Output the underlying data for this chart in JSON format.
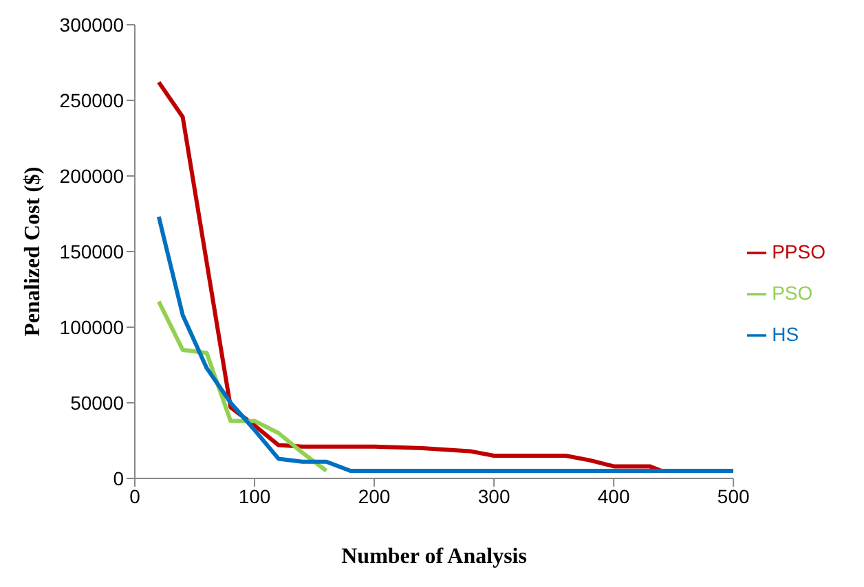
{
  "chart_data": {
    "type": "line",
    "xlabel": "Number of Analysis",
    "ylabel": "Penalized Cost ($)",
    "xlim": [
      0,
      500
    ],
    "xticks": [
      0,
      100,
      200,
      300,
      400,
      500
    ],
    "ylim": [
      0,
      300000
    ],
    "yticks": [
      0,
      50000,
      100000,
      150000,
      200000,
      250000,
      300000
    ],
    "grid": false,
    "legend": "right",
    "marker": "none",
    "line_style": "solid",
    "series": [
      {
        "name": "PPSO",
        "color": "#c00000",
        "x": [
          20,
          40,
          80,
          100,
          120,
          140,
          200,
          240,
          280,
          300,
          360,
          380,
          400,
          420,
          430,
          440
        ],
        "values": [
          262000,
          239000,
          47000,
          35000,
          22000,
          21000,
          21000,
          20000,
          18000,
          15000,
          15000,
          12000,
          8000,
          8000,
          8000,
          5000
        ]
      },
      {
        "name": "PSO",
        "color": "#92d050",
        "x": [
          20,
          40,
          60,
          80,
          100,
          120,
          140,
          160
        ],
        "values": [
          117000,
          85000,
          83000,
          38000,
          38000,
          30000,
          17000,
          5000
        ]
      },
      {
        "name": "HS",
        "color": "#0070c0",
        "x": [
          20,
          40,
          60,
          80,
          100,
          120,
          140,
          160,
          180,
          500
        ],
        "values": [
          173000,
          108000,
          73000,
          50000,
          32000,
          13000,
          11000,
          11000,
          5000,
          5000
        ]
      }
    ]
  }
}
